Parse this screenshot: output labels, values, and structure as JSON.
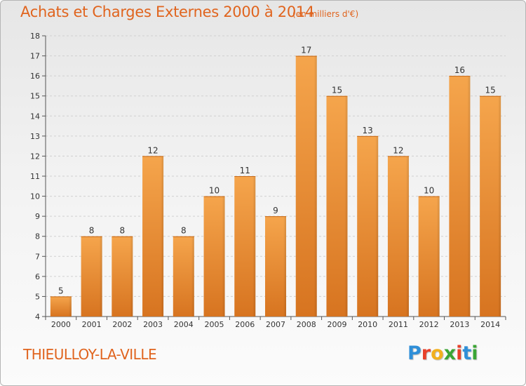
{
  "header": {
    "title": "Achats et Charges Externes 2000 à 2014",
    "unit": "(en milliers d'€)"
  },
  "footer": {
    "commune": "THIEULLOY-LA-VILLE",
    "logo_letters": [
      "P",
      "r",
      "o",
      "x",
      "i",
      "t",
      "i"
    ],
    "logo_colors": [
      "#2f8fd8",
      "#e8402a",
      "#f2b01e",
      "#3aa534",
      "#e8402a",
      "#2f8fd8",
      "#3aa534"
    ]
  },
  "chart_data": {
    "type": "bar",
    "categories": [
      "2000",
      "2001",
      "2002",
      "2003",
      "2004",
      "2005",
      "2006",
      "2007",
      "2008",
      "2009",
      "2010",
      "2011",
      "2012",
      "2013",
      "2014"
    ],
    "values": [
      5,
      8,
      8,
      12,
      8,
      10,
      11,
      9,
      17,
      15,
      13,
      12,
      10,
      16,
      15
    ],
    "title": "Achats et Charges Externes 2000 à 2014",
    "unit": "(en milliers d'€)",
    "ylim": [
      4,
      18
    ],
    "yticks": [
      4,
      5,
      6,
      7,
      8,
      9,
      10,
      11,
      12,
      13,
      14,
      15,
      16,
      17,
      18
    ],
    "grid": true,
    "bar_color": "#f19a3e",
    "bar_color_dark": "#d9761d"
  }
}
